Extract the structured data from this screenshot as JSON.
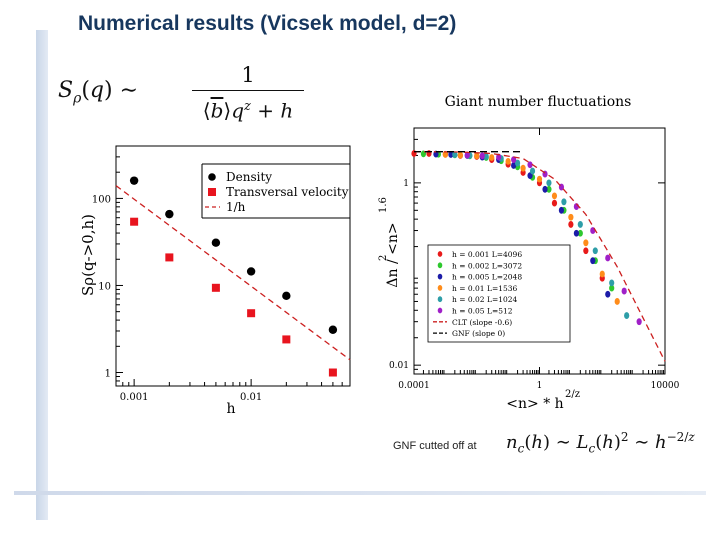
{
  "slide": {
    "title": "Numerical results (Vicsek model, d=2)",
    "gnf_note": "GNF cutted off at"
  },
  "colors": {
    "title": "#17375e",
    "density": "#000000",
    "transversal": "#e8141e",
    "fit": "#cc2020"
  },
  "equations": {
    "structure_factor": "S_ρ(q) ~ 1 / (⟨b̄⟩ q^z + h)",
    "crossover": "n_c(h) ~ L_c(h)^2 ~ h^(-2/z)"
  },
  "chart_data": [
    {
      "type": "scatter",
      "xscale": "log",
      "yscale": "log",
      "xlim": [
        0.0007,
        0.07
      ],
      "ylim": [
        0.7,
        400
      ],
      "xlabel": "h",
      "ylabel": "Sρ(q->0,h)",
      "xtick_labels": [
        "0.001",
        "0.01"
      ],
      "ytick_labels": [
        "1",
        "10",
        "100"
      ],
      "legend_position": "top-right",
      "series": [
        {
          "name": "Density",
          "marker": "circle",
          "color": "#000000",
          "x": [
            0.001,
            0.002,
            0.005,
            0.01,
            0.02,
            0.05
          ],
          "y": [
            160,
            66,
            31,
            14.5,
            7.6,
            3.1
          ]
        },
        {
          "name": "Transversal velocity",
          "marker": "square",
          "color": "#e8141e",
          "x": [
            0.001,
            0.002,
            0.005,
            0.01,
            0.02,
            0.05
          ],
          "y": [
            54,
            21,
            9.4,
            4.8,
            2.4,
            1.0
          ]
        },
        {
          "name": "1/h",
          "marker": "dashed-line",
          "color": "#cc2020",
          "x": [
            0.0007,
            0.07
          ],
          "y": [
            140,
            1.4
          ]
        }
      ]
    },
    {
      "type": "scatter",
      "title": "Giant number fluctuations",
      "xscale": "log",
      "yscale": "log",
      "xlim": [
        0.0001,
        10000
      ],
      "ylim": [
        0.008,
        4
      ],
      "xlabel": "<n> * h",
      "xlabel_sup": "2/z",
      "ylabel": "Δn / <n>",
      "ylabel_sup1": "2",
      "ylabel_sup2": "1.6",
      "xtick_labels": [
        "0.0001",
        "1",
        "10000"
      ],
      "ytick_labels": [
        "0.01",
        "1"
      ],
      "legend_position": "bottom-left",
      "series": [
        {
          "name": "h = 0.001  L=4096",
          "marker": "diamond",
          "color": "#e81a1a",
          "x": [
            0.0001,
            0.0003,
            0.001,
            0.003,
            0.01,
            0.03,
            0.1,
            0.3,
            1,
            3,
            10,
            30,
            100
          ],
          "y": [
            2.1,
            2.1,
            2.06,
            2.0,
            1.95,
            1.8,
            1.6,
            1.3,
            1.0,
            0.6,
            0.35,
            0.18,
            0.09
          ]
        },
        {
          "name": "h = 0.002  L=3072",
          "marker": "diamond",
          "color": "#2ec82e",
          "x": [
            0.0002,
            0.0006,
            0.002,
            0.006,
            0.02,
            0.06,
            0.2,
            0.6,
            2,
            6,
            20,
            60,
            200
          ],
          "y": [
            2.08,
            2.06,
            2.03,
            1.98,
            1.9,
            1.75,
            1.5,
            1.15,
            0.85,
            0.5,
            0.28,
            0.14,
            0.07
          ]
        },
        {
          "name": "h = 0.005  L=2048",
          "marker": "diamond",
          "color": "#1c1ca8",
          "x": [
            0.0005,
            0.0015,
            0.005,
            0.015,
            0.05,
            0.15,
            0.5,
            1.5,
            5,
            15,
            50,
            150
          ],
          "y": [
            2.07,
            2.05,
            2.0,
            1.92,
            1.8,
            1.55,
            1.2,
            0.85,
            0.5,
            0.28,
            0.14,
            0.06
          ]
        },
        {
          "name": "h = 0.01  L=1536",
          "marker": "diamond",
          "color": "#ff8c1a",
          "x": [
            0.001,
            0.003,
            0.01,
            0.03,
            0.1,
            0.3,
            1,
            3,
            10,
            30,
            100,
            300
          ],
          "y": [
            2.05,
            2.02,
            1.98,
            1.9,
            1.72,
            1.45,
            1.1,
            0.72,
            0.42,
            0.22,
            0.1,
            0.05
          ]
        },
        {
          "name": "h = 0.02  L=1024",
          "marker": "diamond",
          "color": "#2e9ea8",
          "x": [
            0.002,
            0.006,
            0.02,
            0.06,
            0.2,
            0.6,
            2,
            6,
            20,
            60,
            200,
            600
          ],
          "y": [
            2.04,
            2.0,
            1.95,
            1.85,
            1.65,
            1.35,
            1.0,
            0.62,
            0.35,
            0.18,
            0.08,
            0.035
          ]
        },
        {
          "name": "h = 0.05  L=512",
          "marker": "diamond",
          "color": "#a020c8",
          "x": [
            0.005,
            0.015,
            0.05,
            0.15,
            0.5,
            1.5,
            5,
            15,
            50,
            150,
            500,
            1500
          ],
          "y": [
            2.02,
            1.98,
            1.92,
            1.8,
            1.58,
            1.25,
            0.9,
            0.55,
            0.3,
            0.15,
            0.065,
            0.03
          ]
        },
        {
          "name": "CLT (slope -0.6)",
          "marker": "dashed-line",
          "color": "#cc2020",
          "x": [
            0.0001,
            0.003,
            0.03,
            0.3,
            3,
            30,
            300,
            3000,
            10000
          ],
          "y": [
            2.2,
            2.18,
            2.1,
            1.85,
            1.1,
            0.45,
            0.12,
            0.025,
            0.011
          ]
        },
        {
          "name": "GNF (slope 0)",
          "marker": "dashed-line",
          "color": "#000000",
          "x": [
            0.0001,
            0.3
          ],
          "y": [
            2.2,
            2.2
          ]
        }
      ]
    }
  ]
}
